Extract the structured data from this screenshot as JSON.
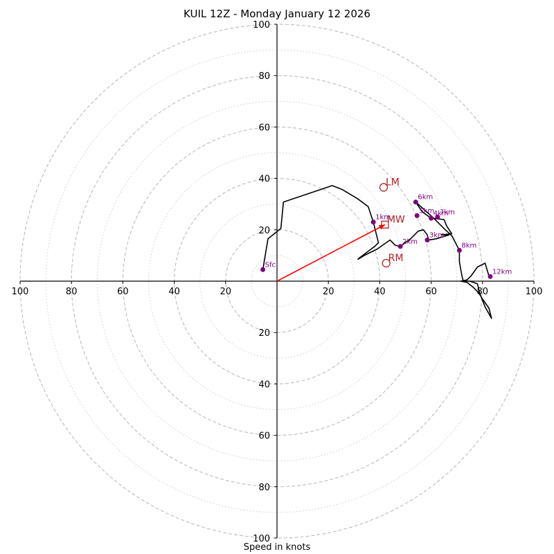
{
  "chart_data": {
    "type": "hodograph",
    "title": "KUIL 12Z - Monday January 12 2026",
    "xlabel": "Speed in knots",
    "units": "knots",
    "max_speed": 100,
    "ring_major_values": [
      20,
      40,
      60,
      80,
      100
    ],
    "ring_minor_values": [
      10,
      30,
      50,
      70,
      90
    ],
    "x_tick_labels": [
      "100",
      "80",
      "60",
      "40",
      "20",
      "20",
      "40",
      "60",
      "80",
      "100"
    ],
    "x_tick_values": [
      -100,
      -80,
      -60,
      -40,
      -20,
      20,
      40,
      60,
      80,
      100
    ],
    "y_tick_labels": [
      "100",
      "80",
      "60",
      "40",
      "20",
      "20",
      "40",
      "60",
      "80",
      "100"
    ],
    "y_tick_values": [
      100,
      80,
      60,
      40,
      20,
      -20,
      -40,
      -60,
      -80,
      -100
    ],
    "hodograph_line": [
      [
        -5.5,
        4.5
      ],
      [
        -3.5,
        16.5
      ],
      [
        1.5,
        20.5
      ],
      [
        2.5,
        30.8
      ],
      [
        21.5,
        37.2
      ],
      [
        25.5,
        35.6
      ],
      [
        31.5,
        32.0
      ],
      [
        35.5,
        29.0
      ],
      [
        37.5,
        23.0
      ],
      [
        39.5,
        15.0
      ],
      [
        38.0,
        13.5
      ],
      [
        32.0,
        9.0
      ],
      [
        31.5,
        8.5
      ],
      [
        34.0,
        10.0
      ],
      [
        39.0,
        12.5
      ],
      [
        44.0,
        16.0
      ],
      [
        46.0,
        14.0
      ],
      [
        48.0,
        13.5
      ],
      [
        52.0,
        16.5
      ],
      [
        55.0,
        19.5
      ],
      [
        57.0,
        20.0
      ],
      [
        58.5,
        18.0
      ],
      [
        59.0,
        16.0
      ],
      [
        62.0,
        16.5
      ],
      [
        67.0,
        18.0
      ],
      [
        64.0,
        18.0
      ],
      [
        68.0,
        18.5
      ],
      [
        66.0,
        21.5
      ],
      [
        65.0,
        24.0
      ],
      [
        60.0,
        24.5
      ],
      [
        56.5,
        27.0
      ],
      [
        54.0,
        30.8
      ],
      [
        61.0,
        24.5
      ],
      [
        65.5,
        20.0
      ],
      [
        68.0,
        17.8
      ],
      [
        71.0,
        12.0
      ],
      [
        71.0,
        7.5
      ],
      [
        72.0,
        2.0
      ],
      [
        72.5,
        0.0
      ],
      [
        75.0,
        0.0
      ],
      [
        78.0,
        -1.0
      ],
      [
        79.0,
        -5.0
      ],
      [
        81.0,
        -10.0
      ],
      [
        83.5,
        -14.5
      ],
      [
        82.5,
        -10.5
      ],
      [
        80.0,
        -7.0
      ],
      [
        78.5,
        -4.5
      ],
      [
        76.5,
        -2.5
      ],
      [
        74.0,
        -0.5
      ],
      [
        71.5,
        0.0
      ],
      [
        74.0,
        0.5
      ],
      [
        75.5,
        2.0
      ],
      [
        78.0,
        5.5
      ],
      [
        81.0,
        7.0
      ],
      [
        82.5,
        2.0
      ]
    ],
    "height_points": [
      {
        "label": "Sfc",
        "u": -5.5,
        "v": 4.5
      },
      {
        "label": "1km",
        "u": 37.5,
        "v": 23.0
      },
      {
        "label": "2km",
        "u": 48.0,
        "v": 13.5
      },
      {
        "label": "3km",
        "u": 58.5,
        "v": 16.0
      },
      {
        "label": "4km",
        "u": 60.0,
        "v": 24.5
      },
      {
        "label": "5km",
        "u": 54.5,
        "v": 25.5
      },
      {
        "label": "6km",
        "u": 54.0,
        "v": 30.8
      },
      {
        "label": "7km",
        "u": 62.5,
        "v": 25.0
      },
      {
        "label": "8km",
        "u": 71.0,
        "v": 12.0
      },
      {
        "label": "12km",
        "u": 83.0,
        "v": 1.8
      }
    ],
    "storm_motion": [
      {
        "label": "LM",
        "u": 41.5,
        "v": 36.5,
        "marker": "circle"
      },
      {
        "label": "MW",
        "u": 42.0,
        "v": 22.0,
        "marker": "square"
      },
      {
        "label": "RM",
        "u": 42.5,
        "v": 7.0,
        "marker": "circle"
      }
    ],
    "shear_vector": {
      "from": [
        0,
        0
      ],
      "to": [
        42.0,
        22.0
      ]
    },
    "colors": {
      "hodograph": "#000000",
      "height_point": "#800080",
      "storm_motion": "#b22222",
      "shear_vector": "#ff0000",
      "ring_major": "#bbbbbb",
      "ring_minor": "#cccccc",
      "axis": "#000000"
    }
  }
}
